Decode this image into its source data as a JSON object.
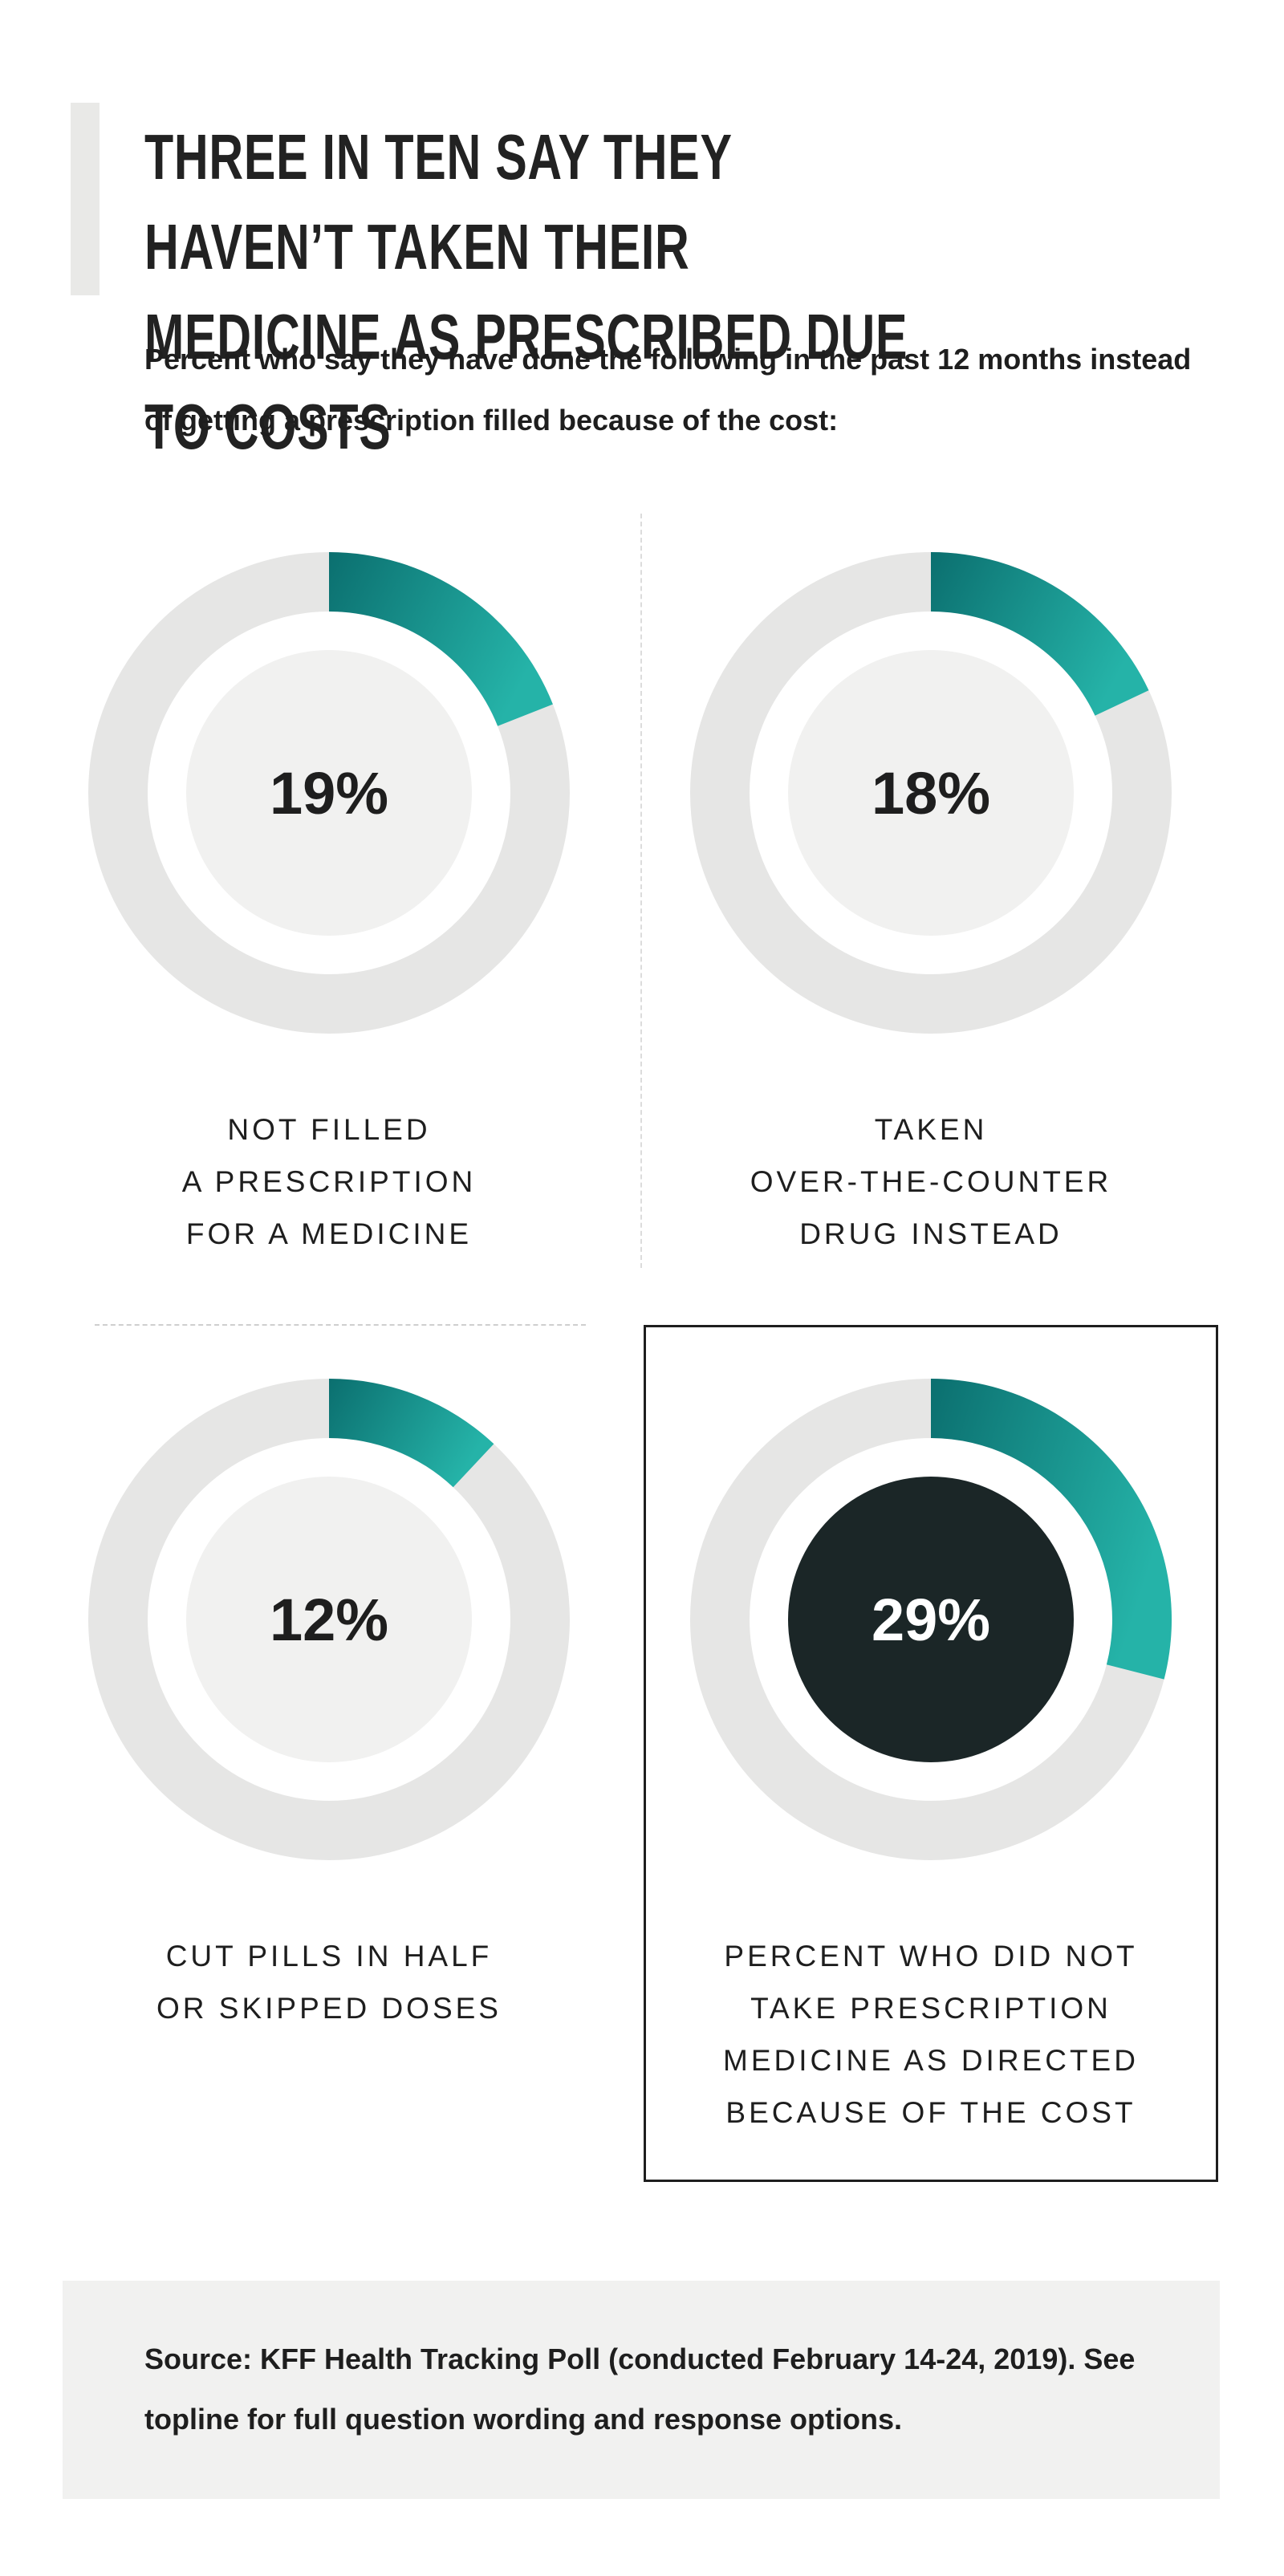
{
  "title": "THREE IN TEN SAY THEY HAVEN’T TAKEN THEIR MEDICINE AS PRESCRIBED DUE TO COSTS",
  "subtitle": "Percent who say they have done the following in the past 12 months instead of getting a prescription filled because of the cost:",
  "colors": {
    "ring_track": "#e6e6e5",
    "inner_light": "#f1f1f0",
    "inner_dark": "#1b2627",
    "teal_start": "#0b6f6f",
    "teal_end": "#25b3a8",
    "text_dark": "#1e1e1e",
    "text_light": "#ffffff"
  },
  "chart_data": {
    "type": "donut",
    "unit": "%",
    "series": [
      {
        "label": "NOT FILLED\nA PRESCRIPTION\nFOR A MEDICINE",
        "value": 19,
        "display": "19%",
        "highlight": false
      },
      {
        "label": "TAKEN\nOVER-THE-COUNTER\nDRUG INSTEAD",
        "value": 18,
        "display": "18%",
        "highlight": false
      },
      {
        "label": "CUT PILLS IN HALF\nOR SKIPPED DOSES",
        "value": 12,
        "display": "12%",
        "highlight": false
      },
      {
        "label": "PERCENT WHO DID NOT\nTAKE PRESCRIPTION\nMEDICINE AS DIRECTED\nBECAUSE OF THE COST",
        "value": 29,
        "display": "29%",
        "highlight": true
      }
    ]
  },
  "source": {
    "label": "Source:",
    "text": " KFF Health Tracking Poll (conducted February 14-24, 2019). See topline for full question wording and response options."
  }
}
